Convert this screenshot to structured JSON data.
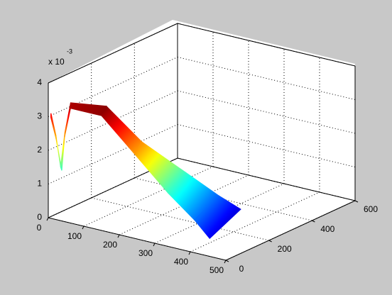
{
  "chart_data": {
    "type": "surface3d",
    "exponent_label": "x 10",
    "exponent": "-3",
    "xlim": [
      0,
      500
    ],
    "xticks": [
      0,
      100,
      200,
      300,
      400,
      500
    ],
    "ylim": [
      0,
      600
    ],
    "yticks": [
      0,
      200,
      400,
      600
    ],
    "zlim": [
      0,
      4
    ],
    "zticks": [
      0,
      1,
      2,
      3,
      4
    ],
    "clim": [
      0,
      3.5
    ],
    "colormap": "jet",
    "grid": true,
    "edge_a": {
      "x": [
        5,
        20,
        34,
        38,
        40,
        133,
        220,
        290,
        350,
        390
      ],
      "y": [
        4,
        2,
        1,
        15,
        38,
        50,
        71,
        160,
        215,
        250
      ],
      "z": [
        3.1,
        2.5,
        1.6,
        2.6,
        3.4,
        3.5,
        2.6,
        1.6,
        0.9,
        0.5
      ]
    },
    "edge_b": {
      "x": [
        7,
        22,
        38,
        44,
        48,
        149,
        244,
        312,
        375,
        409
      ],
      "y": [
        0,
        0,
        0,
        3,
        24,
        2,
        0,
        42,
        61,
        75
      ],
      "z": [
        3.0,
        2.4,
        1.5,
        2.5,
        3.3,
        3.4,
        2.5,
        1.4,
        0.7,
        0.2
      ]
    }
  }
}
